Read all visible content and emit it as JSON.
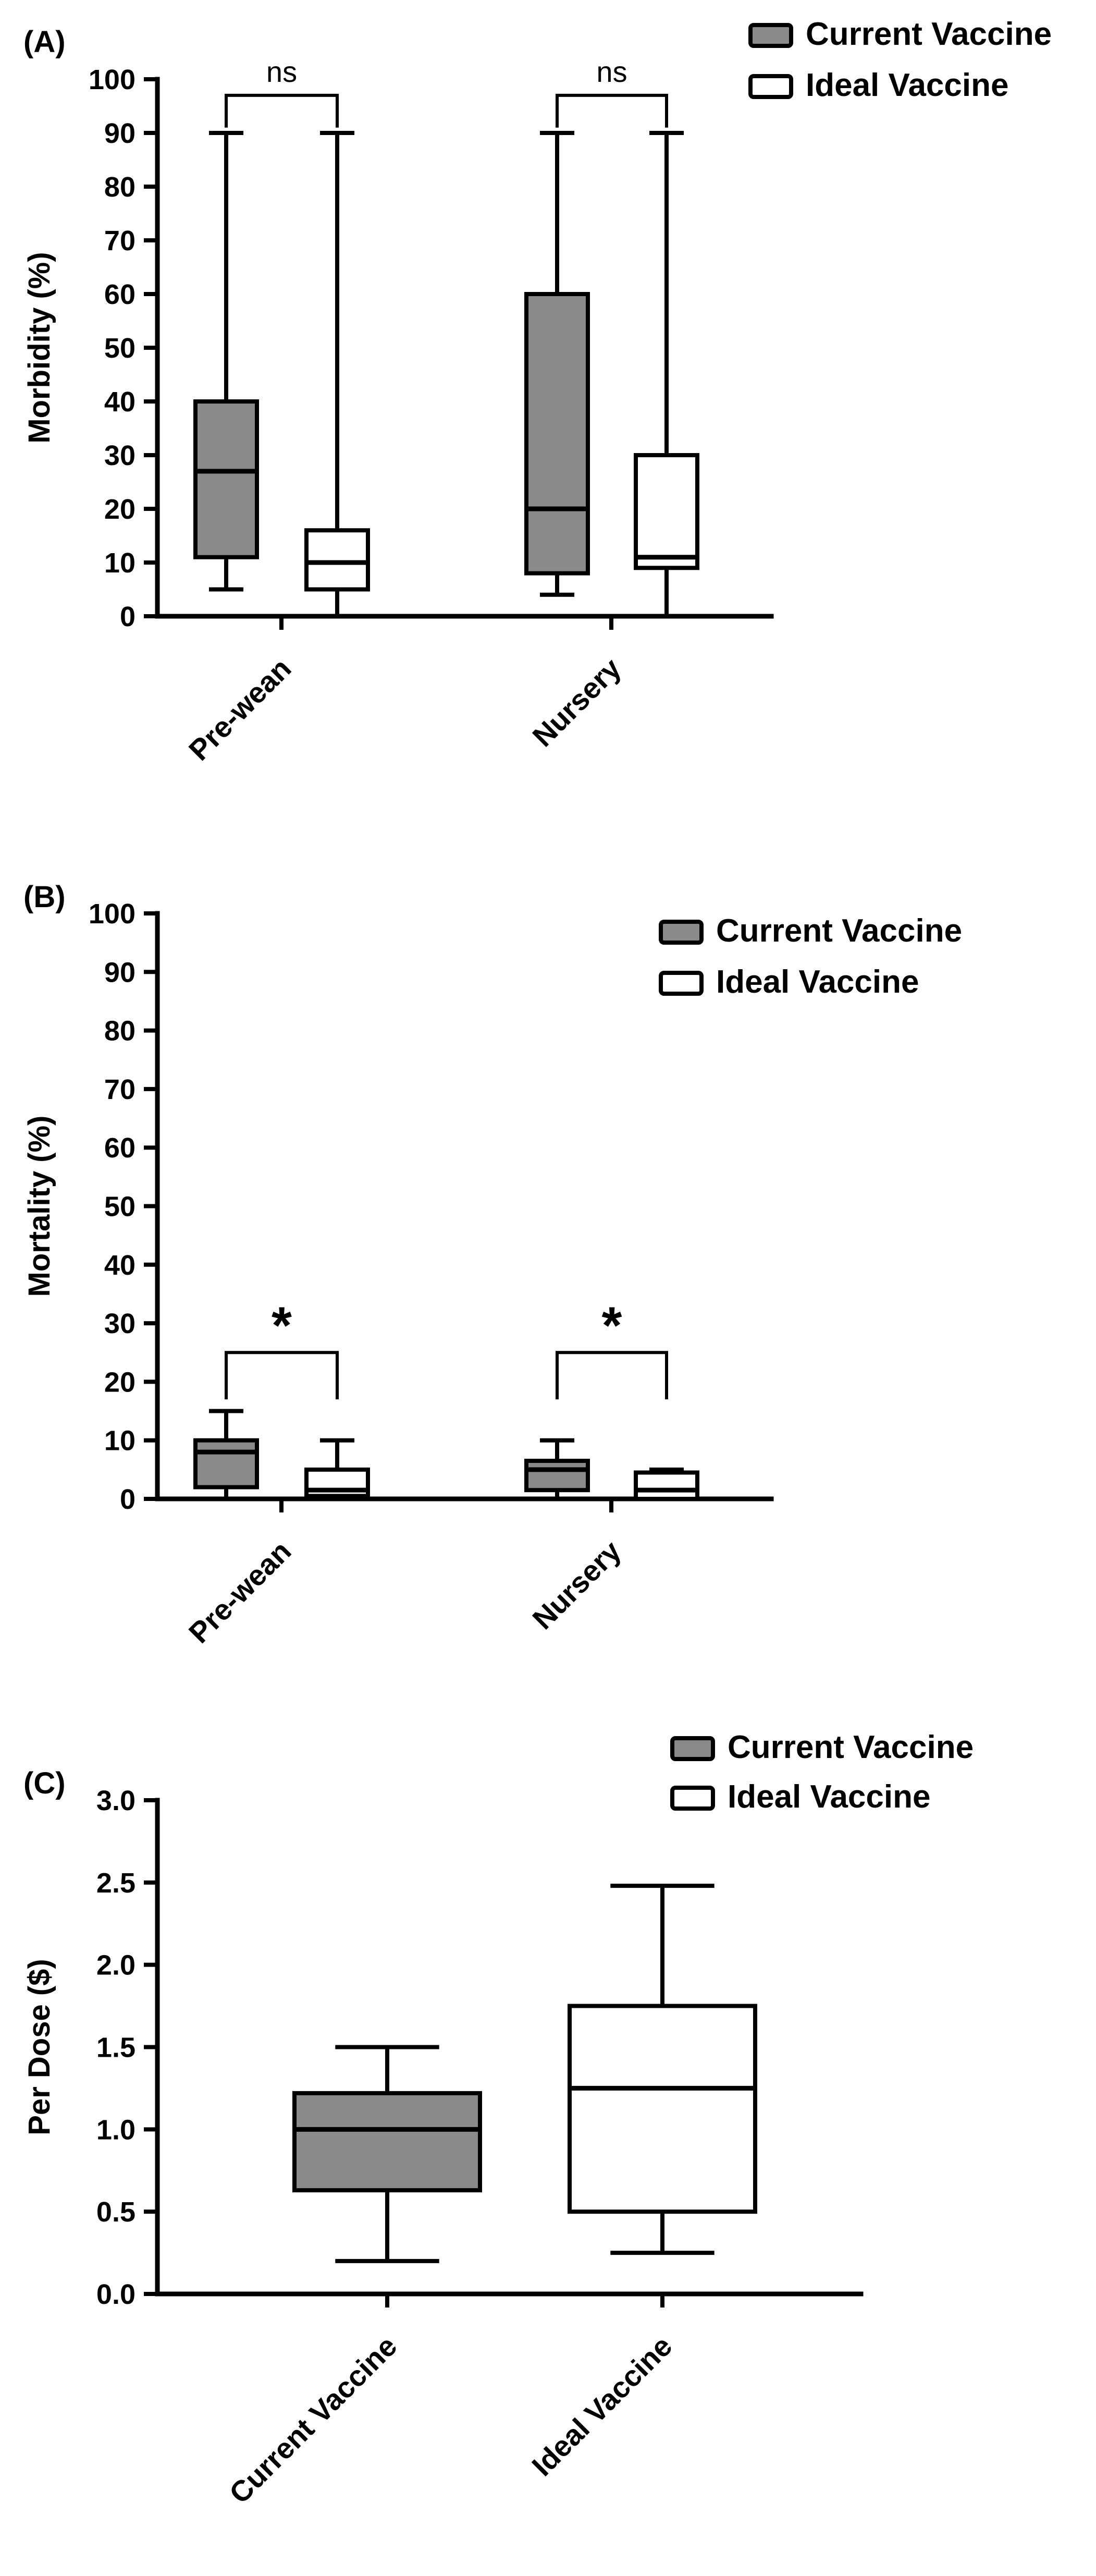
{
  "colors": {
    "current_fill": "#8a8a8a",
    "ideal_fill": "#ffffff",
    "stroke": "#000000",
    "background": "#ffffff"
  },
  "legend": {
    "items": [
      {
        "label": "Current Vaccine",
        "fill": "#8a8a8a"
      },
      {
        "label": "Ideal Vaccine",
        "fill": "#ffffff"
      }
    ]
  },
  "chart_data": [
    {
      "type": "box",
      "panel_label": "(A)",
      "ylabel": "Morbidity (%)",
      "ylim": [
        0,
        100
      ],
      "ytick_step": 10,
      "ytick_decimals": 0,
      "grid": false,
      "legend_position": "top-right",
      "grouped": true,
      "categories": [
        "Pre-wean",
        "Nursery"
      ],
      "series": [
        {
          "name": "Current Vaccine",
          "fill": "#8a8a8a",
          "boxes": [
            {
              "low": 5,
              "q1": 11,
              "median": 27,
              "q3": 40,
              "high": 90
            },
            {
              "low": 4,
              "q1": 8,
              "median": 20,
              "q3": 60,
              "high": 90
            }
          ]
        },
        {
          "name": "Ideal Vaccine",
          "fill": "#ffffff",
          "boxes": [
            {
              "low": 0,
              "q1": 5,
              "median": 10,
              "q3": 16,
              "high": 90
            },
            {
              "low": 0,
              "q1": 9,
              "median": 11,
              "q3": 30,
              "high": 90
            }
          ]
        }
      ],
      "significance": [
        {
          "category": "Pre-wean",
          "label": "ns",
          "y": 97,
          "drop": 6
        },
        {
          "category": "Nursery",
          "label": "ns",
          "y": 97,
          "drop": 6
        }
      ]
    },
    {
      "type": "box",
      "panel_label": "(B)",
      "ylabel": "Mortality (%)",
      "ylim": [
        0,
        100
      ],
      "ytick_step": 10,
      "ytick_decimals": 0,
      "grid": false,
      "legend_position": "top-right",
      "grouped": true,
      "categories": [
        "Pre-wean",
        "Nursery"
      ],
      "series": [
        {
          "name": "Current Vaccine",
          "fill": "#8a8a8a",
          "boxes": [
            {
              "low": 0,
              "q1": 2,
              "median": 8,
              "q3": 10,
              "high": 15
            },
            {
              "low": 0,
              "q1": 1.5,
              "median": 5,
              "q3": 6.5,
              "high": 10
            }
          ]
        },
        {
          "name": "Ideal Vaccine",
          "fill": "#ffffff",
          "boxes": [
            {
              "low": 0,
              "q1": 0.5,
              "median": 1.5,
              "q3": 5,
              "high": 10
            },
            {
              "low": 0,
              "q1": 0,
              "median": 1.5,
              "q3": 4.5,
              "high": 5
            }
          ]
        }
      ],
      "significance": [
        {
          "category": "Pre-wean",
          "label": "*",
          "y": 25,
          "drop": 8
        },
        {
          "category": "Nursery",
          "label": "*",
          "y": 25,
          "drop": 8
        }
      ]
    },
    {
      "type": "box",
      "panel_label": "(C)",
      "ylabel": "Per Dose ($)",
      "ylim": [
        0,
        3
      ],
      "ytick_step": 0.5,
      "ytick_decimals": 1,
      "grid": false,
      "legend_position": "top-right",
      "grouped": false,
      "categories": [
        "Current Vaccine",
        "Ideal Vaccine"
      ],
      "series": [
        {
          "name": "Current Vaccine",
          "fill": "#8a8a8a",
          "boxes": [
            {
              "low": 0.2,
              "q1": 0.63,
              "median": 1.0,
              "q3": 1.22,
              "high": 1.5
            }
          ]
        },
        {
          "name": "Ideal Vaccine",
          "fill": "#ffffff",
          "boxes": [
            {
              "low": 0.25,
              "q1": 0.5,
              "median": 1.25,
              "q3": 1.75,
              "high": 2.48
            }
          ]
        }
      ],
      "significance": []
    }
  ]
}
